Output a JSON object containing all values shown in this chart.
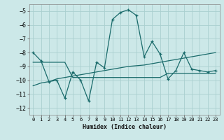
{
  "xlabel": "Humidex (Indice chaleur)",
  "background_color": "#cce8e8",
  "grid_color": "#aacfcf",
  "line_color": "#1a6b6b",
  "xlim": [
    -0.5,
    23.5
  ],
  "ylim": [
    -12.5,
    -4.5
  ],
  "yticks": [
    -12,
    -11,
    -10,
    -9,
    -8,
    -7,
    -6,
    -5
  ],
  "xticks": [
    0,
    1,
    2,
    3,
    4,
    5,
    6,
    7,
    8,
    9,
    10,
    11,
    12,
    13,
    14,
    15,
    16,
    17,
    18,
    19,
    20,
    21,
    22,
    23
  ],
  "x": [
    0,
    1,
    2,
    3,
    4,
    5,
    6,
    7,
    8,
    9,
    10,
    11,
    12,
    13,
    14,
    15,
    16,
    17,
    18,
    19,
    20,
    21,
    22,
    23
  ],
  "y_main": [
    -8.0,
    -8.6,
    -10.1,
    -10.0,
    -11.3,
    -9.4,
    -10.0,
    -11.5,
    -8.7,
    -9.1,
    -5.6,
    -5.1,
    -4.9,
    -5.3,
    -8.3,
    -7.2,
    -8.1,
    -9.9,
    -9.3,
    -8.0,
    -9.2,
    -9.3,
    -9.4,
    -9.3
  ],
  "y_flat": [
    -8.7,
    -8.7,
    -8.7,
    -8.7,
    -8.7,
    -9.8,
    -9.8,
    -9.8,
    -9.8,
    -9.8,
    -9.8,
    -9.8,
    -9.8,
    -9.8,
    -9.8,
    -9.8,
    -9.8,
    -9.5,
    -9.5,
    -9.5,
    -9.5,
    -9.5,
    -9.5,
    -9.5
  ],
  "y_trend": [
    -10.4,
    -10.2,
    -10.1,
    -9.9,
    -9.8,
    -9.7,
    -9.6,
    -9.5,
    -9.4,
    -9.3,
    -9.2,
    -9.1,
    -9.0,
    -8.95,
    -8.9,
    -8.8,
    -8.7,
    -8.6,
    -8.5,
    -8.4,
    -8.3,
    -8.2,
    -8.1,
    -8.0
  ]
}
